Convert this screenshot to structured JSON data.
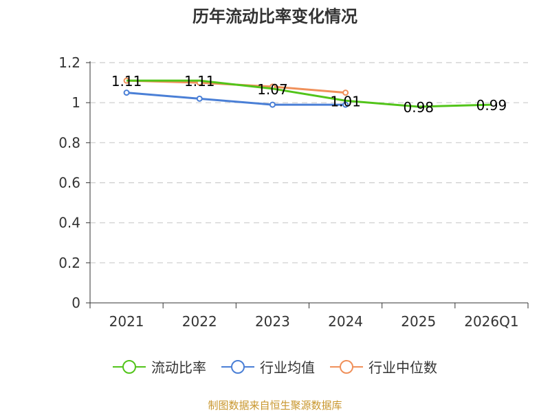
{
  "chart_data": {
    "type": "line",
    "title": "历年流动比率变化情况",
    "categories": [
      "2021",
      "2022",
      "2023",
      "2024",
      "2025",
      "2026Q1"
    ],
    "ylim": [
      0,
      1.2
    ],
    "yticks": [
      "0",
      "0.2",
      "0.4",
      "0.6",
      "0.8",
      "1",
      "1.2"
    ],
    "grid": true,
    "legend_position": "bottom",
    "series": [
      {
        "name": "流动比率",
        "color": "#52c41a",
        "values": [
          1.11,
          1.11,
          1.07,
          1.01,
          0.98,
          0.99
        ],
        "labels": [
          "1.11",
          "1.11",
          "1.07",
          "1.01",
          "0.98",
          "0.99"
        ]
      },
      {
        "name": "行业均值",
        "color": "#4a7fd6",
        "values": [
          1.05,
          1.02,
          0.99,
          0.99,
          null,
          null
        ]
      },
      {
        "name": "行业中位数",
        "color": "#f0905a",
        "values": [
          1.11,
          1.1,
          1.08,
          1.05,
          null,
          null
        ]
      }
    ]
  },
  "source": "制图数据来自恒生聚源数据库"
}
